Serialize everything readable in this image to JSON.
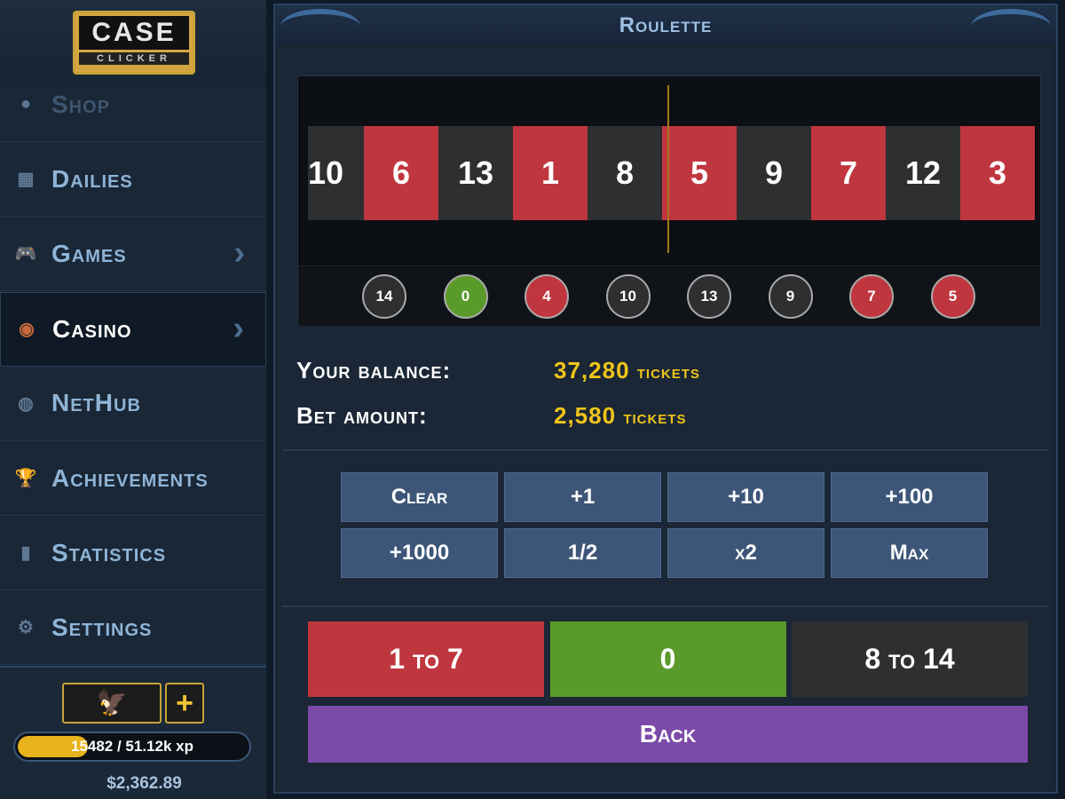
{
  "logo": {
    "line1": "CASE",
    "line2": "CLICKER"
  },
  "nav": [
    {
      "label": "Shop",
      "icon": "circle-icon"
    },
    {
      "label": "Dailies",
      "icon": "calendar-icon"
    },
    {
      "label": "Games",
      "icon": "gamepad-icon",
      "chevron": true
    },
    {
      "label": "Casino",
      "icon": "chip-icon",
      "chevron": true,
      "active": true
    },
    {
      "label": "NetHub",
      "icon": "globe-icon"
    },
    {
      "label": "Achievements",
      "icon": "trophy-icon"
    },
    {
      "label": "Statistics",
      "icon": "bar-chart-icon"
    },
    {
      "label": "Settings",
      "icon": "gear-icon"
    }
  ],
  "profile": {
    "xp_current": "15482",
    "xp_text": "15482 / 51.12k xp",
    "xp_fraction": 0.3,
    "money": "$2,362.89",
    "plus": "+"
  },
  "title": "Roulette",
  "strip": [
    {
      "n": "10",
      "c": "black"
    },
    {
      "n": "6",
      "c": "red"
    },
    {
      "n": "13",
      "c": "black"
    },
    {
      "n": "1",
      "c": "red"
    },
    {
      "n": "8",
      "c": "black"
    },
    {
      "n": "5",
      "c": "red"
    },
    {
      "n": "9",
      "c": "black"
    },
    {
      "n": "7",
      "c": "red"
    },
    {
      "n": "12",
      "c": "black"
    },
    {
      "n": "3",
      "c": "red"
    }
  ],
  "history": [
    {
      "n": "14",
      "c": "black"
    },
    {
      "n": "0",
      "c": "green"
    },
    {
      "n": "4",
      "c": "red"
    },
    {
      "n": "10",
      "c": "black"
    },
    {
      "n": "13",
      "c": "black"
    },
    {
      "n": "9",
      "c": "black"
    },
    {
      "n": "7",
      "c": "red"
    },
    {
      "n": "5",
      "c": "red"
    }
  ],
  "balance": {
    "label": "Your balance:",
    "value": "37,280",
    "unit": "tickets"
  },
  "bet": {
    "label": "Bet amount:",
    "value": "2,580",
    "unit": "tickets"
  },
  "amount_buttons": [
    "Clear",
    "+1",
    "+10",
    "+100",
    "+1000",
    "1/2",
    "x2",
    "Max"
  ],
  "bet_buttons": [
    {
      "label": "1 to 7",
      "color": "#c0363f"
    },
    {
      "label": "0",
      "color": "#5a9a2a"
    },
    {
      "label": "8 to 14",
      "color": "#2e2f31"
    }
  ],
  "back": "Back",
  "colors": {
    "red": "#c0363f",
    "black": "#2e2f31",
    "green": "#5a9a2a",
    "accent": "#f0c419",
    "back": "#7b4aa8"
  }
}
